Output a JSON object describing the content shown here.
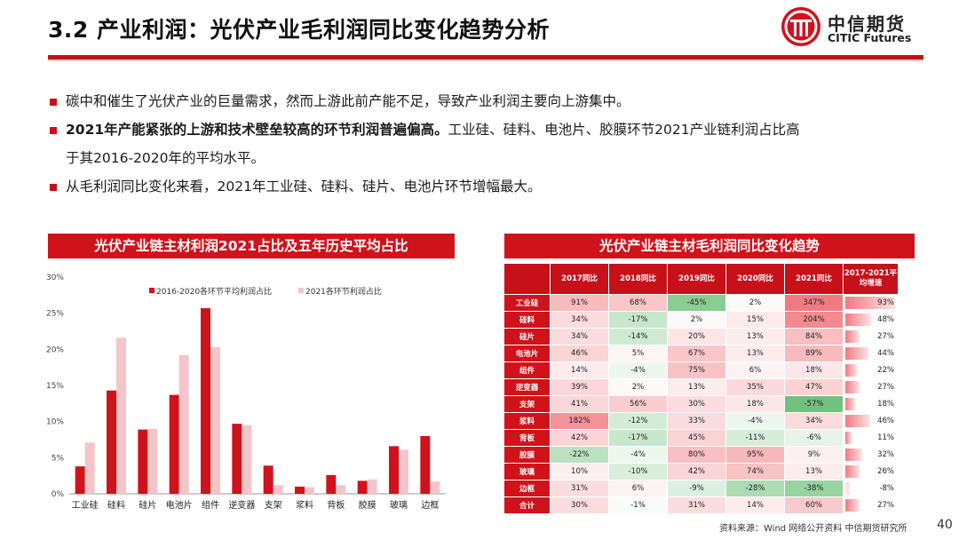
{
  "slide": {
    "title": "3.2 产业利润：光伏产业毛利润同比变化趋势分析",
    "logo_cn": "中信期货",
    "logo_en": "CITIC Futures",
    "bullets": {
      "b1": "碳中和催生了光伏产业的巨量需求，然而上游此前产能不足，导致产业利润主要向上游集中。",
      "b2_bold": "2021年产能紧张的上游和技术壁垒较高的环节利润普遍偏高。",
      "b2_rest": "工业硅、硅料、电池片、胶膜环节2021产业链利润占比高",
      "b2_line2": "于其2016-2020年的平均水平。",
      "b3": "从毛利润同比变化来看，2021年工业硅、硅料、硅片、电池片环节增幅最大。"
    },
    "left_panel_title": "光伏产业链主材利润2021占比及五年历史平均占比",
    "right_panel_title": "光伏产业链主材毛利润同比变化趋势",
    "source": "资料来源：Wind 网络公开资料 中信期货研究所",
    "page_number": "40",
    "colors": {
      "brand_red": "#c8101a",
      "bar_avg": "#d0121b",
      "bar_2021": "#f4c5c8",
      "cell_positive": "#f07a80",
      "cell_negative": "#6cc07a"
    }
  },
  "chart_data": [
    {
      "type": "bar",
      "title": "光伏产业链主材利润2021占比及五年历史平均占比",
      "categories": [
        "工业硅",
        "硅料",
        "硅片",
        "电池片",
        "组件",
        "逆变器",
        "支架",
        "浆料",
        "背板",
        "胶膜",
        "玻璃",
        "边框"
      ],
      "series": [
        {
          "name": "2016-2020各环节平均利润占比",
          "values": [
            3.8,
            14.3,
            8.9,
            13.7,
            25.7,
            9.7,
            3.9,
            1.0,
            2.6,
            1.8,
            6.6,
            8.0
          ]
        },
        {
          "name": "2021各环节利润占比",
          "values": [
            7.1,
            21.6,
            9.0,
            19.2,
            20.3,
            9.5,
            1.2,
            0.9,
            1.2,
            2.0,
            6.1,
            1.7
          ]
        }
      ],
      "y_ticks": [
        "0%",
        "5%",
        "10%",
        "15%",
        "20%",
        "25%",
        "30%"
      ],
      "ylim": [
        0,
        30
      ],
      "y_unit": "%",
      "legend_position": "top",
      "grid": false
    },
    {
      "type": "table",
      "title": "光伏产业链主材毛利润同比变化趋势",
      "columns": [
        "2017同比",
        "2018同比",
        "2019同比",
        "2020同比",
        "2021同比",
        "2017-2021平均增速"
      ],
      "rows": [
        {
          "label": "工业硅",
          "values": [
            "91%",
            "68%",
            "-45%",
            "2%",
            "347%",
            "93%"
          ]
        },
        {
          "label": "硅料",
          "values": [
            "34%",
            "-17%",
            "2%",
            "15%",
            "204%",
            "48%"
          ]
        },
        {
          "label": "硅片",
          "values": [
            "34%",
            "-14%",
            "20%",
            "13%",
            "84%",
            "27%"
          ]
        },
        {
          "label": "电池片",
          "values": [
            "46%",
            "5%",
            "67%",
            "13%",
            "89%",
            "44%"
          ]
        },
        {
          "label": "组件",
          "values": [
            "14%",
            "-4%",
            "75%",
            "6%",
            "18%",
            "22%"
          ]
        },
        {
          "label": "逆变器",
          "values": [
            "39%",
            "2%",
            "13%",
            "35%",
            "47%",
            "27%"
          ]
        },
        {
          "label": "支架",
          "values": [
            "41%",
            "56%",
            "30%",
            "18%",
            "-57%",
            "18%"
          ]
        },
        {
          "label": "浆料",
          "values": [
            "182%",
            "-12%",
            "33%",
            "-4%",
            "34%",
            "46%"
          ]
        },
        {
          "label": "背板",
          "values": [
            "42%",
            "-17%",
            "45%",
            "-11%",
            "-6%",
            "11%"
          ]
        },
        {
          "label": "胶膜",
          "values": [
            "-22%",
            "-4%",
            "80%",
            "95%",
            "9%",
            "32%"
          ]
        },
        {
          "label": "玻璃",
          "values": [
            "10%",
            "-10%",
            "42%",
            "74%",
            "13%",
            "26%"
          ]
        },
        {
          "label": "边框",
          "values": [
            "31%",
            "6%",
            "-9%",
            "-28%",
            "-38%",
            "-8%"
          ]
        },
        {
          "label": "合计",
          "values": [
            "30%",
            "-1%",
            "31%",
            "14%",
            "60%",
            "27%"
          ]
        }
      ]
    }
  ]
}
